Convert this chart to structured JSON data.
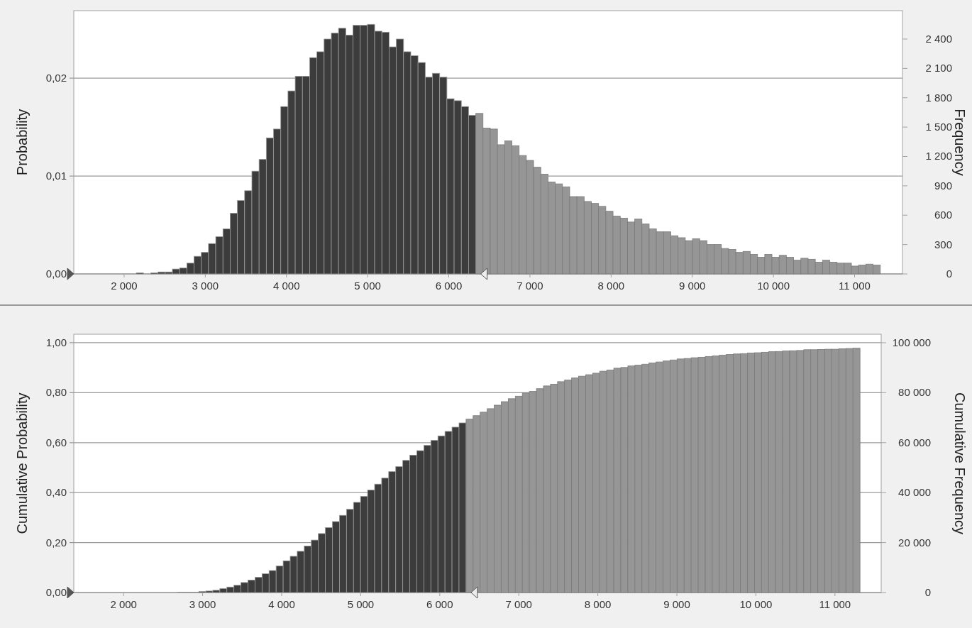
{
  "chart_data": [
    {
      "type": "histogram",
      "ylabel": "Probability",
      "y2label": "Frequency",
      "grid": "y",
      "bins": [
        2150,
        2239,
        2328,
        2417,
        2506,
        2595,
        2684,
        2773,
        2862,
        2951,
        3040,
        3129,
        3218,
        3307,
        3396,
        3485,
        3574,
        3663,
        3752,
        3841,
        3930,
        4019,
        4108,
        4197,
        4286,
        4375,
        4464,
        4553,
        4642,
        4731,
        4820,
        4909,
        4998,
        5087,
        5176,
        5265,
        5354,
        5443,
        5532,
        5621,
        5710,
        5799,
        5888,
        5977,
        6066,
        6155,
        6244,
        6333,
        6422,
        6511,
        6600,
        6689,
        6778,
        6867,
        6956,
        7045,
        7134,
        7223,
        7312,
        7401,
        7490,
        7579,
        7668,
        7757,
        7846,
        7935,
        8024,
        8113,
        8202,
        8291,
        8380,
        8469,
        8558,
        8647,
        8736,
        8825,
        8914,
        9003,
        9092,
        9181,
        9270,
        9359,
        9448,
        9537,
        9626,
        9715,
        9804,
        9893,
        9982,
        10071,
        10160,
        10249,
        10338,
        10427,
        10516,
        10605,
        10694,
        10783,
        10872,
        10961,
        11050,
        11139,
        11228,
        11317
      ],
      "values": [
        0.0001,
        0,
        0.0001,
        0.0002,
        0.0002,
        0.0005,
        0.0006,
        0.0011,
        0.0018,
        0.0022,
        0.0031,
        0.0038,
        0.0046,
        0.0062,
        0.0075,
        0.0085,
        0.0105,
        0.0117,
        0.0139,
        0.0148,
        0.0171,
        0.0187,
        0.0202,
        0.0202,
        0.0221,
        0.0227,
        0.024,
        0.0246,
        0.0251,
        0.0244,
        0.0254,
        0.0254,
        0.0255,
        0.0248,
        0.0247,
        0.0232,
        0.024,
        0.0227,
        0.0223,
        0.0216,
        0.0201,
        0.0205,
        0.0201,
        0.0179,
        0.0177,
        0.0171,
        0.0162,
        0.0164,
        0.0149,
        0.0148,
        0.0132,
        0.0136,
        0.0131,
        0.0121,
        0.0116,
        0.0109,
        0.0102,
        0.0094,
        0.0092,
        0.0089,
        0.0079,
        0.0079,
        0.0074,
        0.0072,
        0.0069,
        0.0064,
        0.0059,
        0.0057,
        0.0053,
        0.0056,
        0.0051,
        0.0046,
        0.0043,
        0.0043,
        0.0039,
        0.0037,
        0.0034,
        0.0036,
        0.0034,
        0.003,
        0.003,
        0.0026,
        0.0025,
        0.0022,
        0.0023,
        0.002,
        0.0017,
        0.002,
        0.0017,
        0.0019,
        0.0017,
        0.0014,
        0.0016,
        0.0015,
        0.0012,
        0.0014,
        0.0012,
        0.0011,
        0.0011,
        0.0008,
        0.0009,
        0.001,
        0.0009
      ],
      "colors": [
        "#3c3c3c",
        "#3c3c3c",
        "#3c3c3c",
        "#3c3c3c",
        "#3c3c3c",
        "#3c3c3c",
        "#3c3c3c",
        "#3c3c3c",
        "#3c3c3c",
        "#3c3c3c",
        "#3c3c3c",
        "#3c3c3c",
        "#3c3c3c",
        "#3c3c3c",
        "#3c3c3c",
        "#3c3c3c",
        "#3c3c3c",
        "#3c3c3c",
        "#3c3c3c",
        "#3c3c3c",
        "#3c3c3c",
        "#3c3c3c",
        "#3c3c3c",
        "#3c3c3c",
        "#3c3c3c",
        "#3c3c3c",
        "#3c3c3c",
        "#3c3c3c",
        "#3c3c3c",
        "#3c3c3c",
        "#3c3c3c",
        "#3c3c3c",
        "#3c3c3c",
        "#3c3c3c",
        "#3c3c3c",
        "#3c3c3c",
        "#3c3c3c",
        "#3c3c3c",
        "#3c3c3c",
        "#3c3c3c",
        "#3c3c3c",
        "#3c3c3c",
        "#3c3c3c",
        "#3c3c3c",
        "#3c3c3c",
        "#3c3c3c",
        "#3c3c3c",
        "#969696",
        "#969696",
        "#969696",
        "#969696",
        "#969696",
        "#969696",
        "#969696",
        "#969696",
        "#969696",
        "#969696",
        "#969696",
        "#969696",
        "#969696",
        "#969696",
        "#969696",
        "#969696",
        "#969696",
        "#969696",
        "#969696",
        "#969696",
        "#969696",
        "#969696",
        "#969696",
        "#969696",
        "#969696",
        "#969696",
        "#969696",
        "#969696",
        "#969696",
        "#969696",
        "#969696",
        "#969696",
        "#969696",
        "#969696",
        "#969696",
        "#969696",
        "#969696",
        "#969696",
        "#969696",
        "#969696",
        "#969696",
        "#969696",
        "#969696",
        "#969696",
        "#969696",
        "#969696",
        "#969696",
        "#969696",
        "#969696",
        "#969696",
        "#969696",
        "#969696",
        "#969696",
        "#969696",
        "#969696",
        "#969696"
      ],
      "xlim": [
        1380,
        11590
      ],
      "xticks": [
        {
          "value": 2000,
          "label": "2 000"
        },
        {
          "value": 3000,
          "label": "3 000"
        },
        {
          "value": 4000,
          "label": "4 000"
        },
        {
          "value": 5000,
          "label": "5 000"
        },
        {
          "value": 6000,
          "label": "6 000"
        },
        {
          "value": 7000,
          "label": "7 000"
        },
        {
          "value": 8000,
          "label": "8 000"
        },
        {
          "value": 9000,
          "label": "9 000"
        },
        {
          "value": 10000,
          "label": "10 000"
        },
        {
          "value": 11000,
          "label": "11 000"
        }
      ],
      "ylim": [
        0,
        0.0269
      ],
      "yticks": [
        {
          "value": 0,
          "label": "0,00"
        },
        {
          "value": 0.01,
          "label": "0,01"
        },
        {
          "value": 0.02,
          "label": "0,02"
        }
      ],
      "y2lim": [
        0,
        2690
      ],
      "y2ticks": [
        0,
        300,
        600,
        900,
        {
          "value": 1200,
          "label": "1 200"
        },
        {
          "value": 1500,
          "label": "1 500"
        },
        {
          "value": 1800,
          "label": "1 800"
        },
        {
          "value": 2100,
          "label": "2 100"
        },
        {
          "value": 2400,
          "label": "2 400"
        }
      ]
    },
    {
      "type": "histogram",
      "ylabel": "Cumulative Probability",
      "y2label": "Cumulative Frequency",
      "grid": "y",
      "bins": [
        2150,
        2239,
        2328,
        2417,
        2506,
        2595,
        2684,
        2773,
        2862,
        2951,
        3040,
        3129,
        3218,
        3307,
        3396,
        3485,
        3574,
        3663,
        3752,
        3841,
        3930,
        4019,
        4108,
        4197,
        4286,
        4375,
        4464,
        4553,
        4642,
        4731,
        4820,
        4909,
        4998,
        5087,
        5176,
        5265,
        5354,
        5443,
        5532,
        5621,
        5710,
        5799,
        5888,
        5977,
        6066,
        6155,
        6244,
        6333,
        6422,
        6511,
        6600,
        6689,
        6778,
        6867,
        6956,
        7045,
        7134,
        7223,
        7312,
        7401,
        7490,
        7579,
        7668,
        7757,
        7846,
        7935,
        8024,
        8113,
        8202,
        8291,
        8380,
        8469,
        8558,
        8647,
        8736,
        8825,
        8914,
        9003,
        9092,
        9181,
        9270,
        9359,
        9448,
        9537,
        9626,
        9715,
        9804,
        9893,
        9982,
        10071,
        10160,
        10249,
        10338,
        10427,
        10516,
        10605,
        10694,
        10783,
        10872,
        10961,
        11050,
        11139,
        11228,
        11317
      ],
      "values": [
        0,
        0,
        0,
        0,
        0,
        0,
        0.001,
        0.001,
        0.001,
        0.004,
        0.006,
        0.009,
        0.016,
        0.022,
        0.029,
        0.04,
        0.05,
        0.061,
        0.075,
        0.088,
        0.106,
        0.127,
        0.145,
        0.165,
        0.186,
        0.21,
        0.236,
        0.26,
        0.284,
        0.309,
        0.333,
        0.361,
        0.385,
        0.41,
        0.434,
        0.458,
        0.484,
        0.504,
        0.529,
        0.55,
        0.568,
        0.589,
        0.609,
        0.627,
        0.645,
        0.662,
        0.679,
        0.694,
        0.708,
        0.722,
        0.736,
        0.75,
        0.764,
        0.776,
        0.786,
        0.799,
        0.805,
        0.816,
        0.827,
        0.834,
        0.844,
        0.851,
        0.859,
        0.866,
        0.872,
        0.878,
        0.886,
        0.891,
        0.898,
        0.901,
        0.907,
        0.91,
        0.914,
        0.919,
        0.923,
        0.927,
        0.931,
        0.935,
        0.937,
        0.94,
        0.942,
        0.945,
        0.947,
        0.95,
        0.953,
        0.955,
        0.956,
        0.959,
        0.96,
        0.962,
        0.964,
        0.965,
        0.967,
        0.968,
        0.969,
        0.972,
        0.972,
        0.973,
        0.974,
        0.974,
        0.976,
        0.977,
        0.978
      ],
      "colors": [
        "#3c3c3c",
        "#3c3c3c",
        "#3c3c3c",
        "#3c3c3c",
        "#3c3c3c",
        "#3c3c3c",
        "#3c3c3c",
        "#3c3c3c",
        "#3c3c3c",
        "#3c3c3c",
        "#3c3c3c",
        "#3c3c3c",
        "#3c3c3c",
        "#3c3c3c",
        "#3c3c3c",
        "#3c3c3c",
        "#3c3c3c",
        "#3c3c3c",
        "#3c3c3c",
        "#3c3c3c",
        "#3c3c3c",
        "#3c3c3c",
        "#3c3c3c",
        "#3c3c3c",
        "#3c3c3c",
        "#3c3c3c",
        "#3c3c3c",
        "#3c3c3c",
        "#3c3c3c",
        "#3c3c3c",
        "#3c3c3c",
        "#3c3c3c",
        "#3c3c3c",
        "#3c3c3c",
        "#3c3c3c",
        "#3c3c3c",
        "#3c3c3c",
        "#3c3c3c",
        "#3c3c3c",
        "#3c3c3c",
        "#3c3c3c",
        "#3c3c3c",
        "#3c3c3c",
        "#3c3c3c",
        "#3c3c3c",
        "#3c3c3c",
        "#3c3c3c",
        "#969696",
        "#969696",
        "#969696",
        "#969696",
        "#969696",
        "#969696",
        "#969696",
        "#969696",
        "#969696",
        "#969696",
        "#969696",
        "#969696",
        "#969696",
        "#969696",
        "#969696",
        "#969696",
        "#969696",
        "#969696",
        "#969696",
        "#969696",
        "#969696",
        "#969696",
        "#969696",
        "#969696",
        "#969696",
        "#969696",
        "#969696",
        "#969696",
        "#969696",
        "#969696",
        "#969696",
        "#969696",
        "#969696",
        "#969696",
        "#969696",
        "#969696",
        "#969696",
        "#969696",
        "#969696",
        "#969696",
        "#969696",
        "#969696",
        "#969696",
        "#969696",
        "#969696",
        "#969696",
        "#969696",
        "#969696",
        "#969696",
        "#969696",
        "#969696",
        "#969696",
        "#969696",
        "#969696",
        "#969696",
        "#969696"
      ],
      "xlim": [
        1370,
        11585
      ],
      "xticks": [
        {
          "value": 2000,
          "label": "2 000"
        },
        {
          "value": 3000,
          "label": "3 000"
        },
        {
          "value": 4000,
          "label": "4 000"
        },
        {
          "value": 5000,
          "label": "5 000"
        },
        {
          "value": 6000,
          "label": "6 000"
        },
        {
          "value": 7000,
          "label": "7 000"
        },
        {
          "value": 8000,
          "label": "8 000"
        },
        {
          "value": 9000,
          "label": "9 000"
        },
        {
          "value": 10000,
          "label": "10 000"
        },
        {
          "value": 11000,
          "label": "11 000"
        }
      ],
      "ylim": [
        0,
        1.034
      ],
      "yticks": [
        {
          "value": 0,
          "label": "0,00"
        },
        {
          "value": 0.2,
          "label": "0,20"
        },
        {
          "value": 0.4,
          "label": "0,40"
        },
        {
          "value": 0.6,
          "label": "0,60"
        },
        {
          "value": 0.8,
          "label": "0,80"
        },
        {
          "value": 1,
          "label": "1,00"
        }
      ],
      "y2lim": [
        0,
        103400
      ],
      "y2ticks": [
        0,
        {
          "value": 20000,
          "label": "20 000"
        },
        {
          "value": 40000,
          "label": "40 000"
        },
        {
          "value": 60000,
          "label": "60 000"
        },
        {
          "value": 80000,
          "label": "80 000"
        },
        {
          "value": 100000,
          "label": "100 000"
        }
      ]
    }
  ]
}
